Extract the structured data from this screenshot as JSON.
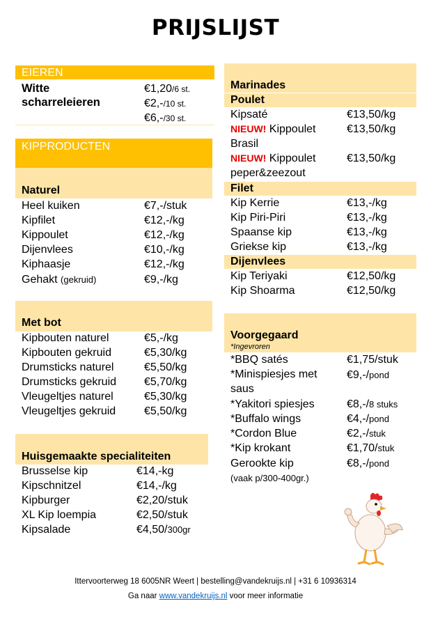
{
  "title": "PRIJSLIJST",
  "eieren": {
    "header": "EIEREN",
    "item_line1": "Witte",
    "item_line2": "scharreleieren",
    "prices": [
      {
        "amount": "€1,20",
        "unit": "/6 st."
      },
      {
        "amount": "€2,-",
        "unit": "/10 st."
      },
      {
        "amount": "€6,-",
        "unit": "/30 st."
      }
    ]
  },
  "kipproducten": {
    "header": "KIPPRODUCTEN"
  },
  "naturel": {
    "header": "Naturel",
    "items": [
      {
        "name": "Heel kuiken",
        "price": "€7,-/stuk"
      },
      {
        "name": "Kipfilet",
        "price": "€12,-/kg"
      },
      {
        "name": "Kippoulet",
        "price": "€12,-/kg"
      },
      {
        "name": "Dijenvlees",
        "price": "€10,-/kg"
      },
      {
        "name": "Kiphaasje",
        "price": "€12,-/kg"
      },
      {
        "name": "Gehakt",
        "name_suffix": "(gekruid)",
        "price": "€9,-/kg"
      }
    ]
  },
  "met_bot": {
    "header": "Met bot",
    "items": [
      {
        "name": "Kipbouten naturel",
        "price": "€5,-/kg"
      },
      {
        "name": "Kipbouten gekruid",
        "price": "€5,30/kg"
      },
      {
        "name": "Drumsticks naturel",
        "price": "€5,50/kg"
      },
      {
        "name": "Drumsticks gekruid",
        "price": "€5,70/kg"
      },
      {
        "name": "Vleugeltjes naturel",
        "price": "€5,30/kg"
      },
      {
        "name": "Vleugeltjes gekruid",
        "price": "€5,50/kg"
      }
    ]
  },
  "huisgemaakt": {
    "header": "Huisgemaakte specialiteiten",
    "items": [
      {
        "name": "Brusselse kip",
        "price": "€14,-kg"
      },
      {
        "name": "Kipschnitzel",
        "price": "€14,-/kg"
      },
      {
        "name": "Kipburger",
        "price": "€2,20/stuk"
      },
      {
        "name": "XL Kip loempia",
        "price": "€2,50/stuk"
      },
      {
        "name": "Kipsalade",
        "price_main": "€4,50/",
        "price_unit": "300gr"
      }
    ]
  },
  "marinades": {
    "header": "Marinades",
    "poulet": {
      "header": "Poulet",
      "items": [
        {
          "name": "Kipsaté",
          "price": "€13,50/kg"
        },
        {
          "badge": "NIEUW!",
          "name": "Kippoulet",
          "name2": "Brasil",
          "price": "€13,50/kg"
        },
        {
          "badge": "NIEUW!",
          "name": "Kippoulet",
          "name2": "peper&zeezout",
          "price": "€13,50/kg"
        }
      ]
    },
    "filet": {
      "header": "Filet",
      "items": [
        {
          "name": "Kip Kerrie",
          "price": "€13,-/kg"
        },
        {
          "name": "Kip Piri-Piri",
          "price": "€13,-/kg"
        },
        {
          "name": "Spaanse kip",
          "price": "€13,-/kg"
        },
        {
          "name": "Griekse kip",
          "price": "€13,-/kg"
        }
      ]
    },
    "dijenvlees": {
      "header": "Dijenvlees",
      "items": [
        {
          "name": "Kip Teriyaki",
          "price": "€12,50/kg"
        },
        {
          "name": "Kip Shoarma",
          "price": "€12,50/kg"
        }
      ]
    }
  },
  "voorgegaard": {
    "header": "Voorgegaard",
    "note": "*Ingevroren",
    "items": [
      {
        "name": "*BBQ satés",
        "price_main": "€1,75/",
        "price_unit": "stuk"
      },
      {
        "name": "*Minispiesjes met",
        "name2": "saus",
        "price_main": "€9,-/",
        "price_unit": "pond"
      },
      {
        "name": "*Yakitori spiesjes",
        "price_main": "€8,-/",
        "price_unit": "8 stuks"
      },
      {
        "name": "*Buffalo wings",
        "price_main": "€4,-/",
        "price_unit": "pond"
      },
      {
        "name": "*Cordon Blue",
        "price_main": "€2,-/",
        "price_unit": "stuk"
      },
      {
        "name": "*Kip krokant",
        "price_main": "€1,70/",
        "price_unit": "stuk"
      },
      {
        "name": "Gerookte kip",
        "name2": "(vaak p/300-400gr.)",
        "price_main": "€8,-/",
        "price_unit": "pond"
      }
    ]
  },
  "footer": {
    "line1": "Ittervoorterweg 18 6005NR Weert  |  bestelling@vandekruijs.nl  |  +31 6 10936314",
    "line2_prefix": "Ga naar ",
    "link": "www.vandekruijs.nl",
    "line2_suffix": " voor meer informatie"
  },
  "colors": {
    "orange": "#fec000",
    "light_orange": "#fee5a7",
    "nieuw_red": "#e60000",
    "link_blue": "#0563c1"
  },
  "icons": {
    "mascot": "chicken-thumbs-up-icon"
  }
}
